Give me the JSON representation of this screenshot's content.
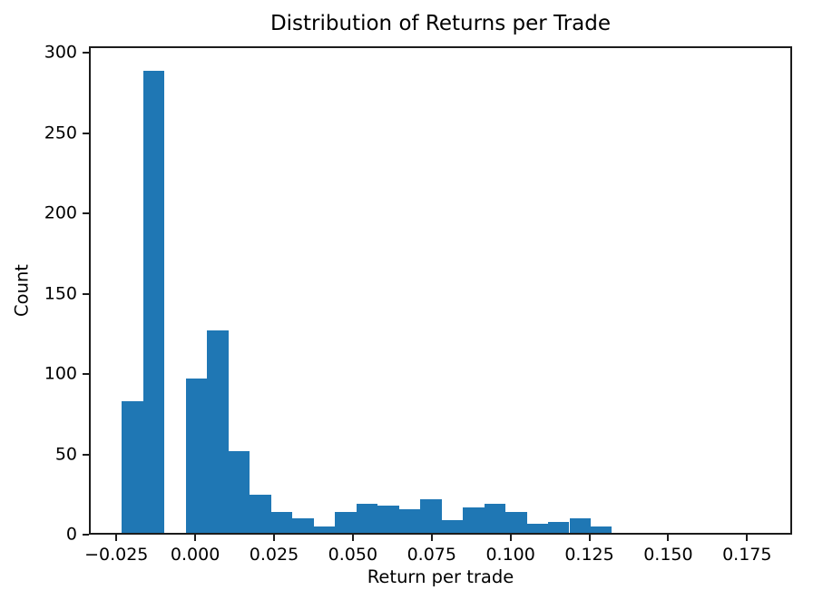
{
  "figure": {
    "background": "#ffffff",
    "bar_color": "#1f77b4",
    "spine_color": "#1c1c1c"
  },
  "chart_data": {
    "type": "bar",
    "subtype": "histogram",
    "title": "Distribution of Returns per Trade",
    "xlabel": "Return per trade",
    "ylabel": "Count",
    "bin_start": -0.0233,
    "bin_width": 0.00676,
    "counts": [
      83,
      289,
      0,
      97,
      127,
      52,
      25,
      14,
      10,
      5,
      14,
      19,
      18,
      16,
      22,
      9,
      17,
      19,
      14,
      7,
      8,
      10,
      5
    ],
    "xlim": [
      -0.0337,
      0.1893
    ],
    "ylim": [
      0,
      304
    ],
    "xticks": [
      -0.025,
      0.0,
      0.025,
      0.05,
      0.075,
      0.1,
      0.125,
      0.15,
      0.175
    ],
    "xtick_labels": [
      "−0.025",
      "0.000",
      "0.025",
      "0.050",
      "0.075",
      "0.100",
      "0.125",
      "0.150",
      "0.175"
    ],
    "yticks": [
      0,
      50,
      100,
      150,
      200,
      250,
      300
    ],
    "ytick_labels": [
      "0",
      "50",
      "100",
      "150",
      "200",
      "250",
      "300"
    ],
    "grid": false,
    "legend": null
  }
}
